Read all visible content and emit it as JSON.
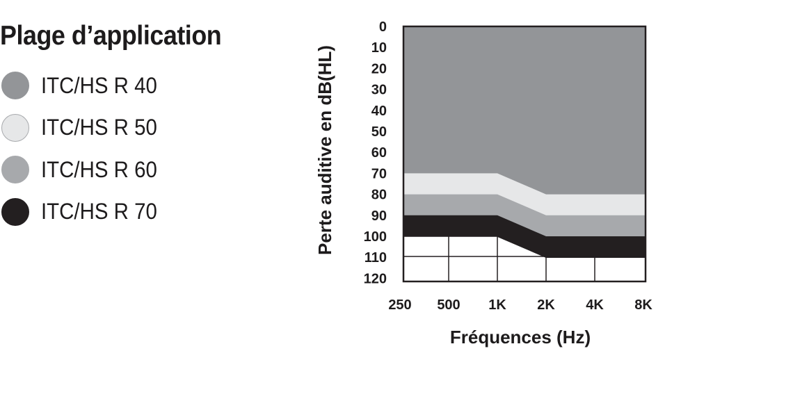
{
  "legend": {
    "title": "Plage d’application",
    "items": [
      {
        "label": "ITC/HS R 40",
        "color": "#939598",
        "border": "#939598"
      },
      {
        "label": "ITC/HS R 50",
        "color": "#e6e7e8",
        "border": "#a7a9ac"
      },
      {
        "label": "ITC/HS R 60",
        "color": "#a7a9ac",
        "border": "#a7a9ac"
      },
      {
        "label": "ITC/HS R 70",
        "color": "#231f20",
        "border": "#231f20"
      }
    ]
  },
  "chart_data": {
    "type": "area",
    "xlabel": "Fréquences (Hz)",
    "ylabel": "Perte auditive en dB(HL)",
    "x_tick_labels": [
      "250",
      "500",
      "1K",
      "2K",
      "4K",
      "8K"
    ],
    "y_tick_labels": [
      "0",
      "10",
      "20",
      "30",
      "40",
      "50",
      "60",
      "70",
      "80",
      "90",
      "100",
      "110",
      "120"
    ],
    "ylim": [
      0,
      120
    ],
    "y_inverted": true,
    "grid": true,
    "series": [
      {
        "name": "ITC/HS R 40",
        "color": "#939598",
        "values": [
          70,
          70,
          70,
          80,
          80,
          80
        ]
      },
      {
        "name": "ITC/HS R 50",
        "color": "#e6e7e8",
        "values": [
          80,
          80,
          80,
          90,
          90,
          90
        ]
      },
      {
        "name": "ITC/HS R 60",
        "color": "#a7a9ac",
        "values": [
          90,
          90,
          90,
          100,
          100,
          100
        ]
      },
      {
        "name": "ITC/HS R 70",
        "color": "#231f20",
        "values": [
          100,
          100,
          100,
          110,
          110,
          110
        ]
      }
    ]
  }
}
